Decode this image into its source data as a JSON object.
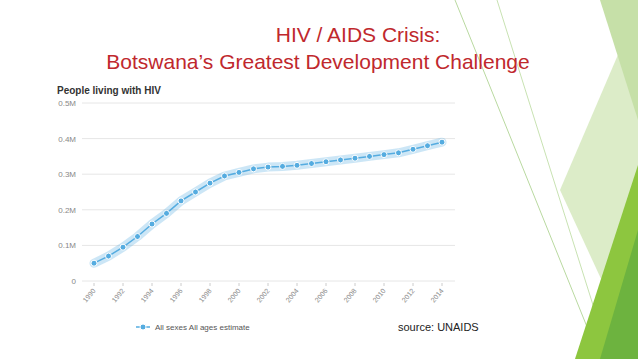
{
  "chart_data": {
    "type": "line",
    "title": "HIV / AIDS Crisis:",
    "subtitle": "Botswana’s Greatest Development Challenge",
    "y_label": "People living with HIV",
    "annotations": [
      "source: UNAIDS"
    ],
    "x": [
      1990,
      1991,
      1992,
      1993,
      1994,
      1995,
      1996,
      1997,
      1998,
      1999,
      2000,
      2001,
      2002,
      2003,
      2004,
      2005,
      2006,
      2007,
      2008,
      2009,
      2010,
      2011,
      2012,
      2013,
      2014
    ],
    "series": [
      {
        "name": "All sexes All ages estimate",
        "color": "#55ace0",
        "marker": "circle",
        "line_style": "solid",
        "values": [
          50000,
          70000,
          95000,
          125000,
          160000,
          190000,
          225000,
          250000,
          275000,
          295000,
          305000,
          315000,
          320000,
          322000,
          325000,
          330000,
          335000,
          340000,
          345000,
          350000,
          355000,
          360000,
          370000,
          380000,
          390000
        ]
      }
    ],
    "xlim": [
      1990,
      2014
    ],
    "xticks": [
      1990,
      1992,
      1994,
      1996,
      1998,
      2000,
      2002,
      2004,
      2006,
      2008,
      2010,
      2012,
      2014
    ],
    "ylim": [
      0,
      500000
    ],
    "yticks": [
      0,
      {
        "value": 100000,
        "label": "0.1M"
      },
      {
        "value": 200000,
        "label": "0.2M"
      },
      {
        "value": 300000,
        "label": "0.3M"
      },
      {
        "value": 400000,
        "label": "0.4M"
      },
      {
        "value": 500000,
        "label": "0.5M"
      }
    ],
    "grid": true,
    "legend": "bottom"
  }
}
